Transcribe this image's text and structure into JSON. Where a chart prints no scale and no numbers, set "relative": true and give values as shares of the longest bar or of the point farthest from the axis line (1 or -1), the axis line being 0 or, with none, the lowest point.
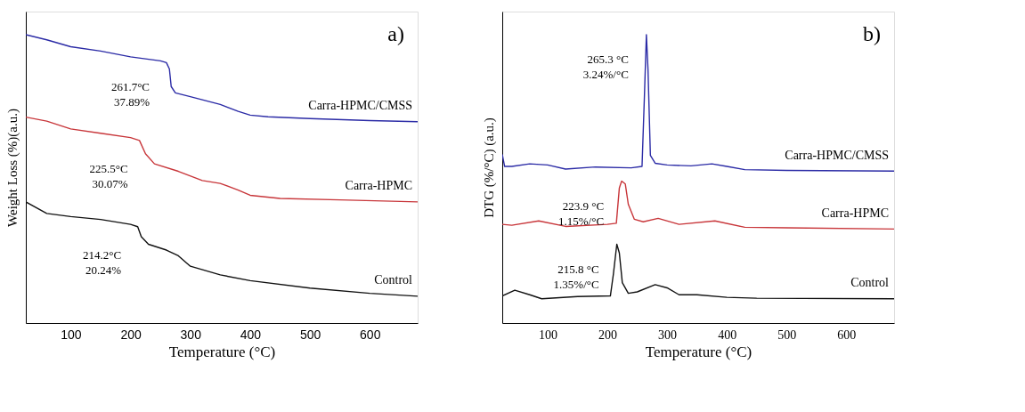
{
  "chart_data": [
    {
      "type": "line",
      "relative": true,
      "xlabel": "Temperature (°C)",
      "ylabel": "Weight Loss (%)(a.u.)",
      "xlim": [
        25,
        680
      ],
      "xticks": [
        100,
        200,
        300,
        400,
        500,
        600
      ],
      "tick_labels": "x",
      "grid": false,
      "annotations": [
        "a)",
        {
          "text": "261.7°C\n37.89%",
          "x": 261.7,
          "y": 0.905
        },
        {
          "text": "225.5°C\n30.07%",
          "x": 225.5,
          "y": 0.62
        },
        {
          "text": "214.2°C\n20.24%",
          "x": 214.2,
          "y": 0.32
        }
      ],
      "series": [
        {
          "name": "Carra-HPMC/CMSS",
          "color": "#2b2ba6",
          "x": [
            25,
            60,
            100,
            150,
            200,
            250,
            260,
            265,
            268,
            275,
            300,
            350,
            380,
            400,
            430,
            500,
            600,
            680
          ],
          "values": [
            1.0,
            0.982,
            0.958,
            0.943,
            0.923,
            0.909,
            0.903,
            0.881,
            0.82,
            0.798,
            0.785,
            0.758,
            0.734,
            0.721,
            0.715,
            0.709,
            0.702,
            0.698
          ]
        },
        {
          "name": "Carra-HPMC",
          "color": "#c8363a",
          "x": [
            25,
            60,
            100,
            150,
            200,
            215,
            225,
            240,
            280,
            320,
            350,
            380,
            400,
            450,
            550,
            680
          ],
          "values": [
            0.714,
            0.7,
            0.673,
            0.658,
            0.643,
            0.633,
            0.587,
            0.552,
            0.526,
            0.494,
            0.484,
            0.461,
            0.443,
            0.432,
            0.427,
            0.42
          ]
        },
        {
          "name": "Control",
          "color": "#111111",
          "x": [
            25,
            60,
            100,
            150,
            200,
            212,
            218,
            230,
            260,
            280,
            300,
            350,
            400,
            500,
            600,
            680
          ],
          "values": [
            0.42,
            0.38,
            0.369,
            0.359,
            0.342,
            0.334,
            0.299,
            0.273,
            0.253,
            0.233,
            0.197,
            0.167,
            0.147,
            0.121,
            0.103,
            0.093
          ]
        }
      ]
    },
    {
      "type": "line",
      "relative": true,
      "xlabel": "Temperature (°C)",
      "ylabel": "DTG (%/°C) (a.u.)",
      "xlim": [
        24,
        680
      ],
      "xticks": [
        100,
        200,
        300,
        400,
        500,
        600
      ],
      "tick_labels": "x",
      "grid": false,
      "annotations": [
        "b)",
        {
          "text": "265.3 °C\n3.24%/°C",
          "x": 265.3,
          "y": 1.0
        },
        {
          "text": "223.9 °C\n1.15%/°C",
          "x": 223.9,
          "y": 0.492
        },
        {
          "text": "215.8 °C\n1.35%/°C",
          "x": 215.8,
          "y": 0.273
        }
      ],
      "series": [
        {
          "name": "Carra-HPMC/CMSS",
          "color": "#2b2ba6",
          "x": [
            24,
            28,
            40,
            70,
            100,
            130,
            180,
            240,
            258,
            262,
            265.3,
            268,
            272,
            280,
            300,
            340,
            375,
            400,
            430,
            500,
            680
          ],
          "values": [
            0.585,
            0.543,
            0.543,
            0.552,
            0.548,
            0.534,
            0.541,
            0.538,
            0.543,
            0.787,
            1.0,
            0.88,
            0.581,
            0.554,
            0.548,
            0.545,
            0.552,
            0.543,
            0.532,
            0.529,
            0.527
          ]
        },
        {
          "name": "Carra-HPMC",
          "color": "#c8363a",
          "x": [
            24,
            40,
            85,
            130,
            200,
            215,
            220,
            223.9,
            230,
            235,
            245,
            260,
            285,
            320,
            380,
            430,
            500,
            680
          ],
          "values": [
            0.342,
            0.339,
            0.354,
            0.335,
            0.342,
            0.346,
            0.468,
            0.492,
            0.482,
            0.412,
            0.36,
            0.351,
            0.363,
            0.342,
            0.354,
            0.332,
            0.33,
            0.326
          ]
        },
        {
          "name": "Control",
          "color": "#111111",
          "x": [
            24,
            45,
            70,
            90,
            150,
            205,
            210,
            215.8,
            220,
            225,
            235,
            250,
            280,
            300,
            320,
            350,
            400,
            450,
            680
          ],
          "values": [
            0.094,
            0.114,
            0.098,
            0.084,
            0.092,
            0.094,
            0.169,
            0.273,
            0.243,
            0.14,
            0.103,
            0.108,
            0.133,
            0.122,
            0.098,
            0.098,
            0.089,
            0.086,
            0.084
          ]
        }
      ]
    }
  ]
}
